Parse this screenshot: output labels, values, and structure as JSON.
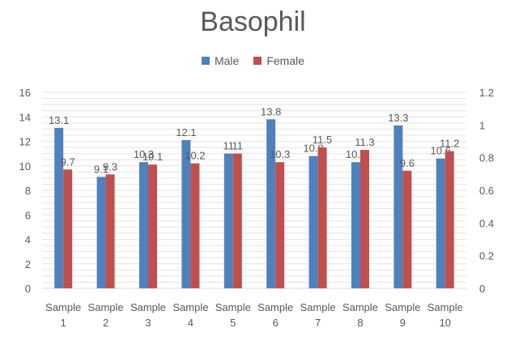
{
  "chart_data": {
    "type": "bar",
    "title": "Basophil",
    "categories": [
      [
        "Sample",
        "1"
      ],
      [
        "Sample",
        "2"
      ],
      [
        "Sample",
        "3"
      ],
      [
        "Sample",
        "4"
      ],
      [
        "Sample",
        "5"
      ],
      [
        "Sample",
        "6"
      ],
      [
        "Sample",
        "7"
      ],
      [
        "Sample",
        "8"
      ],
      [
        "Sample",
        "9"
      ],
      [
        "Sample",
        "10"
      ]
    ],
    "series": [
      {
        "name": "Male",
        "color": "#4F81BD",
        "values": [
          13.1,
          9.1,
          10.3,
          12.1,
          11,
          13.8,
          10.8,
          10.3,
          13.3,
          10.6
        ],
        "labels": [
          "13.1",
          "9.1",
          "10.3",
          "12.1",
          "11",
          "13.8",
          "10.8",
          "10.3",
          "13.3",
          "10.6"
        ]
      },
      {
        "name": "Female",
        "color": "#C0504D",
        "values": [
          9.7,
          9.3,
          10.1,
          10.2,
          11,
          10.3,
          11.5,
          11.3,
          9.6,
          11.2
        ],
        "labels": [
          "9.7",
          "9.3",
          "10.1",
          "10.2",
          "11",
          "10.3",
          "11.5",
          "11.3",
          "9.6",
          "11.2"
        ]
      }
    ],
    "ylim": [
      0,
      16
    ],
    "yticks": [
      "0",
      "2",
      "4",
      "6",
      "8",
      "10",
      "12",
      "14",
      "16"
    ],
    "y2lim": [
      0,
      1.2
    ],
    "y2ticks": [
      "0",
      "0.2",
      "0.4",
      "0.6",
      "0.8",
      "1",
      "1.2"
    ],
    "legend_position": "top",
    "grid": true
  }
}
